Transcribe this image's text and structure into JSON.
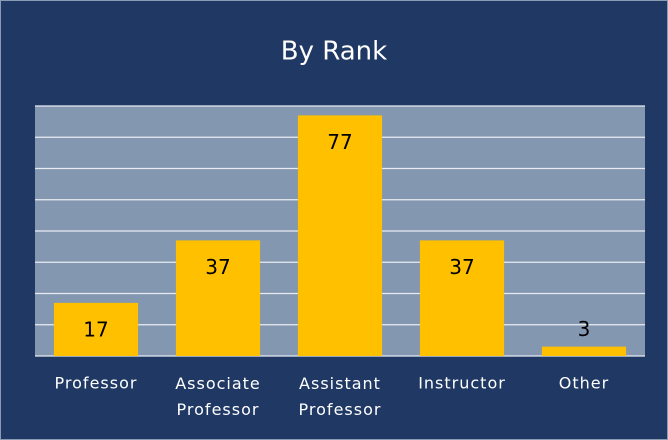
{
  "chart_data": {
    "type": "bar",
    "title": "By Rank",
    "categories": [
      "Professor",
      "Associate Professor",
      "Assistant Professor",
      "Instructor",
      "Other"
    ],
    "values": [
      17,
      37,
      77,
      37,
      3
    ],
    "color": "#ffc000",
    "ylim": [
      0,
      80
    ],
    "yticks": [
      0,
      10,
      20,
      30,
      40,
      50,
      60,
      70,
      80
    ],
    "grid": true
  }
}
